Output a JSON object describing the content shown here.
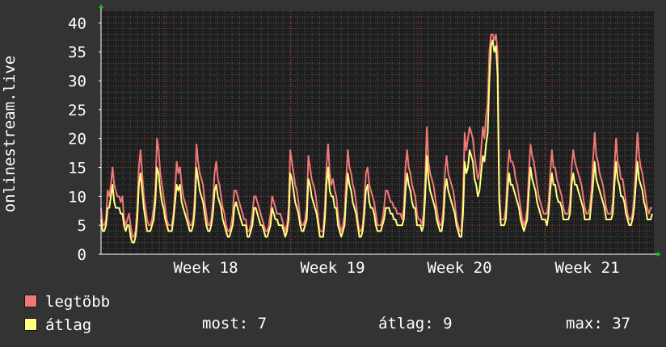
{
  "chart_data": {
    "type": "line",
    "ylabel": "onlinestream.live",
    "ylim": [
      0,
      42
    ],
    "y_ticks": [
      0,
      5,
      10,
      15,
      20,
      25,
      30,
      35,
      40
    ],
    "x_ticks": [
      "Week 18",
      "Week 19",
      "Week 20",
      "Week 21"
    ],
    "grid": true,
    "series": [
      {
        "name": "legtöbb",
        "color": "#f07878",
        "values": [
          8,
          5,
          5,
          6,
          11,
          10,
          12,
          15,
          12,
          11,
          10,
          10,
          9,
          10,
          6,
          5,
          6,
          7,
          5,
          3,
          3,
          4,
          8,
          15,
          18,
          14,
          10,
          8,
          6,
          5,
          5,
          6,
          8,
          11,
          20,
          18,
          14,
          12,
          10,
          8,
          6,
          5,
          5,
          5,
          7,
          11,
          16,
          14,
          15,
          12,
          10,
          9,
          8,
          6,
          5,
          5,
          6,
          10,
          19,
          16,
          14,
          13,
          12,
          9,
          7,
          5,
          5,
          6,
          9,
          14,
          16,
          13,
          12,
          10,
          8,
          7,
          5,
          4,
          4,
          5,
          7,
          11,
          11,
          10,
          9,
          8,
          7,
          6,
          6,
          4,
          4,
          5,
          7,
          10,
          10,
          9,
          8,
          7,
          6,
          5,
          4,
          4,
          5,
          7,
          10,
          9,
          8,
          7,
          7,
          7,
          6,
          5,
          4,
          5,
          8,
          18,
          16,
          14,
          12,
          11,
          9,
          6,
          5,
          5,
          6,
          8,
          17,
          15,
          13,
          12,
          11,
          9,
          6,
          4,
          4,
          4,
          8,
          15,
          19,
          14,
          12,
          13,
          11,
          10,
          7,
          5,
          4,
          5,
          7,
          13,
          18,
          15,
          14,
          12,
          11,
          9,
          6,
          4,
          4,
          5,
          9,
          14,
          15,
          12,
          11,
          10,
          9,
          7,
          5,
          5,
          5,
          6,
          8,
          11,
          11,
          10,
          9,
          9,
          8,
          8,
          7,
          7,
          7,
          6,
          8,
          15,
          18,
          15,
          14,
          12,
          11,
          10,
          7,
          6,
          6,
          5,
          7,
          13,
          22,
          16,
          14,
          13,
          12,
          10,
          8,
          6,
          5,
          5,
          8,
          14,
          17,
          14,
          13,
          12,
          11,
          9,
          6,
          5,
          4,
          4,
          10,
          21,
          18,
          20,
          22,
          21,
          20,
          17,
          15,
          13,
          14,
          18,
          22,
          20,
          24,
          26,
          35,
          38,
          38,
          37,
          38,
          35,
          11,
          6,
          6,
          6,
          8,
          14,
          18,
          16,
          16,
          15,
          13,
          12,
          10,
          8,
          6,
          5,
          6,
          8,
          14,
          19,
          17,
          16,
          14,
          12,
          10,
          9,
          8,
          7,
          7,
          7,
          9,
          14,
          18,
          15,
          15,
          13,
          12,
          11,
          10,
          8,
          7,
          7,
          7,
          9,
          15,
          18,
          16,
          15,
          14,
          13,
          12,
          10,
          8,
          7,
          7,
          8,
          11,
          16,
          21,
          17,
          16,
          14,
          13,
          12,
          10,
          8,
          7,
          7,
          7,
          9,
          15,
          20,
          16,
          15,
          13,
          13,
          11,
          9,
          7,
          6,
          6,
          7,
          10,
          15,
          21,
          17,
          15,
          14,
          12,
          10,
          8,
          7,
          8,
          8
        ]
      },
      {
        "name": "átlag",
        "color": "#ffff80",
        "values": [
          6,
          4,
          4,
          5,
          8,
          8,
          10,
          12,
          9,
          8,
          8,
          8,
          7,
          7,
          5,
          4,
          5,
          5,
          3,
          2,
          2,
          3,
          6,
          12,
          14,
          11,
          8,
          6,
          4,
          4,
          4,
          5,
          6,
          9,
          15,
          14,
          11,
          9,
          8,
          6,
          5,
          4,
          4,
          4,
          6,
          9,
          12,
          11,
          12,
          9,
          8,
          7,
          6,
          5,
          4,
          4,
          5,
          8,
          15,
          13,
          11,
          10,
          9,
          7,
          5,
          4,
          4,
          5,
          7,
          11,
          12,
          10,
          9,
          8,
          6,
          5,
          4,
          3,
          3,
          4,
          5,
          8,
          9,
          8,
          7,
          6,
          5,
          5,
          5,
          3,
          3,
          4,
          5,
          8,
          8,
          7,
          6,
          5,
          5,
          4,
          3,
          3,
          4,
          5,
          8,
          7,
          6,
          6,
          5,
          5,
          5,
          4,
          3,
          4,
          6,
          14,
          13,
          11,
          9,
          8,
          7,
          5,
          4,
          4,
          5,
          6,
          13,
          12,
          10,
          9,
          8,
          7,
          5,
          3,
          3,
          3,
          6,
          12,
          15,
          11,
          10,
          10,
          8,
          8,
          5,
          4,
          3,
          4,
          5,
          10,
          14,
          12,
          11,
          9,
          8,
          7,
          5,
          3,
          3,
          4,
          7,
          11,
          12,
          9,
          8,
          8,
          7,
          5,
          4,
          4,
          4,
          5,
          6,
          8,
          8,
          8,
          7,
          7,
          6,
          6,
          5,
          5,
          5,
          5,
          6,
          11,
          14,
          12,
          11,
          9,
          8,
          8,
          5,
          5,
          5,
          4,
          5,
          10,
          17,
          13,
          11,
          10,
          9,
          8,
          6,
          5,
          4,
          4,
          6,
          11,
          13,
          11,
          10,
          9,
          8,
          7,
          5,
          4,
          3,
          3,
          7,
          16,
          14,
          15,
          18,
          17,
          16,
          13,
          12,
          10,
          11,
          14,
          17,
          16,
          19,
          21,
          30,
          36,
          37,
          35,
          36,
          31,
          9,
          5,
          5,
          5,
          6,
          11,
          14,
          12,
          12,
          11,
          10,
          9,
          8,
          6,
          5,
          4,
          5,
          6,
          11,
          15,
          13,
          12,
          11,
          9,
          8,
          7,
          6,
          6,
          6,
          5,
          7,
          11,
          14,
          12,
          12,
          10,
          9,
          9,
          8,
          6,
          6,
          6,
          6,
          7,
          12,
          14,
          12,
          12,
          11,
          10,
          9,
          8,
          6,
          6,
          6,
          6,
          9,
          12,
          16,
          13,
          12,
          11,
          10,
          9,
          8,
          6,
          6,
          6,
          6,
          7,
          12,
          16,
          13,
          12,
          10,
          10,
          9,
          7,
          6,
          5,
          5,
          6,
          8,
          12,
          16,
          13,
          12,
          11,
          9,
          8,
          6,
          6,
          6,
          7
        ]
      }
    ]
  },
  "legend": {
    "max_label": "legtöbb",
    "avg_label": "átlag"
  },
  "stats": {
    "now": "most: 7",
    "avg": "átlag: 9",
    "max": "max: 37"
  },
  "colors": {
    "background": "#333333",
    "plot_background": "#1e1e1e",
    "grid_major": "#a83c3c",
    "grid_minor": "#5a5a5a",
    "axis_arrow": "#00cc00"
  }
}
